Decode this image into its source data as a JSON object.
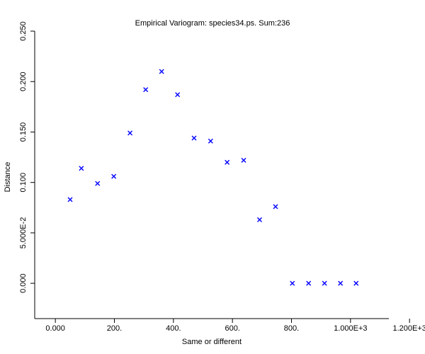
{
  "chart_data": {
    "type": "scatter",
    "title": "Empirical Variogram: species34.ps. Sum:236",
    "xlabel": "Same or different",
    "ylabel": "Distance",
    "xlim": [
      -70,
      1130
    ],
    "ylim": [
      -0.035,
      0.25
    ],
    "x_ticks": [
      0,
      200,
      400,
      600,
      800,
      1000,
      1200
    ],
    "x_tick_labels": [
      "0.000",
      "200.",
      "400.",
      "600.",
      "800.",
      "1.000E+3",
      "1.200E+3"
    ],
    "y_ticks": [
      0.0,
      0.05,
      0.1,
      0.15,
      0.2,
      0.25
    ],
    "y_tick_labels": [
      "0.000",
      "5.000E-2",
      "0.100",
      "0.150",
      "0.200",
      "0.250"
    ],
    "marker": "x",
    "marker_color": "#0000ff",
    "grid": false,
    "legend": "none",
    "series": [
      {
        "points": [
          {
            "x": 50,
            "y": 0.083
          },
          {
            "x": 88,
            "y": 0.114
          },
          {
            "x": 143,
            "y": 0.099
          },
          {
            "x": 198,
            "y": 0.106
          },
          {
            "x": 253,
            "y": 0.149
          },
          {
            "x": 306,
            "y": 0.192
          },
          {
            "x": 360,
            "y": 0.21
          },
          {
            "x": 414,
            "y": 0.187
          },
          {
            "x": 470,
            "y": 0.144
          },
          {
            "x": 526,
            "y": 0.141
          },
          {
            "x": 582,
            "y": 0.12
          },
          {
            "x": 638,
            "y": 0.122
          },
          {
            "x": 692,
            "y": 0.063
          },
          {
            "x": 746,
            "y": 0.076
          },
          {
            "x": 803,
            "y": 0.0
          },
          {
            "x": 858,
            "y": 0.0
          },
          {
            "x": 912,
            "y": 0.0
          },
          {
            "x": 966,
            "y": 0.0
          },
          {
            "x": 1019,
            "y": 0.0
          }
        ]
      }
    ]
  }
}
